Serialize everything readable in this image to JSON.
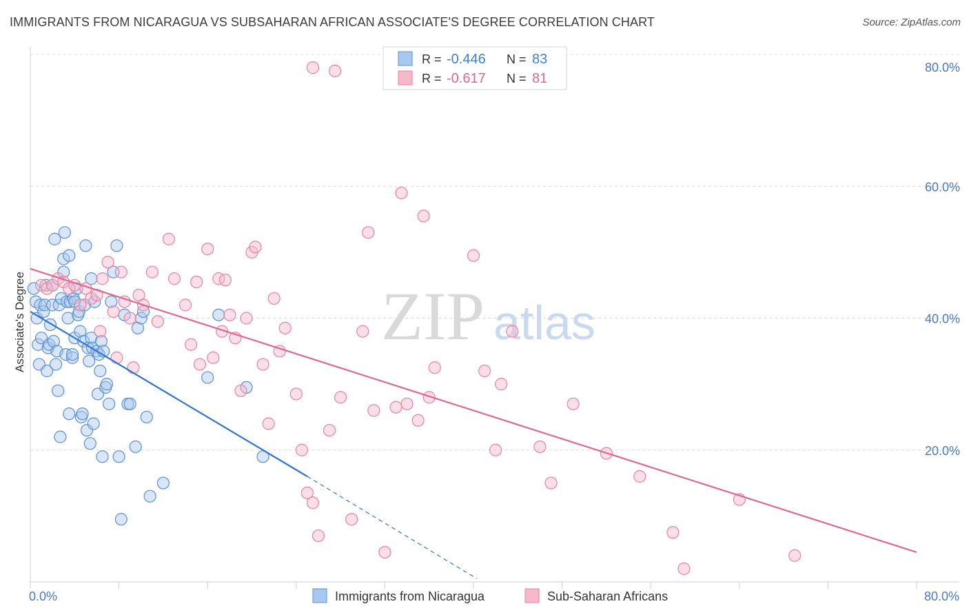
{
  "title": "IMMIGRANTS FROM NICARAGUA VS SUBSAHARAN AFRICAN ASSOCIATE'S DEGREE CORRELATION CHART",
  "source": "Source: ZipAtlas.com",
  "watermark": {
    "zip": "ZIP",
    "atlas": "atlas"
  },
  "chart_data": {
    "type": "scatter",
    "ylabel": "Associate's Degree",
    "xlim": [
      0,
      80
    ],
    "ylim": [
      0,
      80
    ],
    "x_tick_labels": [
      {
        "value": 0,
        "label": "0.0%"
      },
      {
        "value": 80,
        "label": "80.0%"
      }
    ],
    "y_tick_labels": [
      {
        "value": 20,
        "label": "20.0%"
      },
      {
        "value": 40,
        "label": "40.0%"
      },
      {
        "value": 60,
        "label": "60.0%"
      },
      {
        "value": 80,
        "label": "80.0%"
      }
    ],
    "grid": true,
    "legend_top": {
      "placement": "top-center",
      "rows": [
        {
          "r_label": "R = ",
          "r_value": "-0.446",
          "n_label": "N = ",
          "n_value": "83",
          "color": "#a9c8ee"
        },
        {
          "r_label": "R = ",
          "r_value": " -0.617",
          "n_label": "N = ",
          "n_value": " 81",
          "color": "#f6b8cb"
        }
      ]
    },
    "legend_bottom": {
      "placement": "bottom-center",
      "entries": [
        {
          "label": "Immigrants from Nicaragua",
          "color": "#a9c8ee"
        },
        {
          "label": "Sub-Saharan Africans",
          "color": "#f6b8cb"
        }
      ]
    },
    "series": [
      {
        "name": "Immigrants from Nicaragua",
        "fill": "#a9c8ee",
        "stroke": "#5b8fd6",
        "trend": {
          "color": "#2f74d0",
          "x_start": 0,
          "y_start": 41.0,
          "x_end": 25,
          "y_end": 16.0,
          "dash_x_end": 40.3,
          "dash_y_end": 0.5
        },
        "points": [
          [
            0.3,
            44.5
          ],
          [
            0.5,
            42.5
          ],
          [
            0.6,
            40.0
          ],
          [
            0.7,
            36.0
          ],
          [
            0.8,
            33.0
          ],
          [
            0.9,
            42.0
          ],
          [
            1.0,
            37.0
          ],
          [
            1.2,
            41.0
          ],
          [
            1.3,
            42.0
          ],
          [
            1.4,
            45.0
          ],
          [
            1.5,
            32.0
          ],
          [
            1.6,
            35.5
          ],
          [
            1.7,
            36.0
          ],
          [
            1.8,
            39.0
          ],
          [
            2.0,
            45.0
          ],
          [
            2.0,
            42.0
          ],
          [
            2.1,
            36.5
          ],
          [
            2.2,
            52.0
          ],
          [
            2.3,
            33.0
          ],
          [
            2.4,
            35.0
          ],
          [
            2.5,
            29.0
          ],
          [
            2.6,
            42.0
          ],
          [
            2.7,
            22.0
          ],
          [
            2.8,
            43.0
          ],
          [
            3.0,
            49.0
          ],
          [
            3.0,
            47.0
          ],
          [
            3.1,
            53.0
          ],
          [
            3.2,
            34.5
          ],
          [
            3.3,
            42.5
          ],
          [
            3.4,
            40.0
          ],
          [
            3.5,
            25.5
          ],
          [
            3.5,
            49.5
          ],
          [
            3.6,
            42.5
          ],
          [
            3.8,
            34.0
          ],
          [
            3.8,
            34.5
          ],
          [
            3.9,
            43.0
          ],
          [
            4.0,
            37.0
          ],
          [
            4.0,
            42.5
          ],
          [
            4.2,
            44.5
          ],
          [
            4.3,
            40.5
          ],
          [
            4.4,
            41.0
          ],
          [
            4.5,
            38.0
          ],
          [
            4.6,
            25.0
          ],
          [
            4.7,
            25.5
          ],
          [
            4.8,
            36.5
          ],
          [
            4.9,
            42.0
          ],
          [
            5.0,
            51.0
          ],
          [
            5.1,
            23.0
          ],
          [
            5.2,
            35.5
          ],
          [
            5.3,
            33.5
          ],
          [
            5.4,
            21.0
          ],
          [
            5.5,
            46.0
          ],
          [
            5.5,
            37.0
          ],
          [
            5.6,
            35.5
          ],
          [
            5.7,
            24.0
          ],
          [
            5.8,
            42.5
          ],
          [
            6.0,
            35.0
          ],
          [
            6.1,
            28.5
          ],
          [
            6.2,
            34.5
          ],
          [
            6.3,
            32.0
          ],
          [
            6.4,
            36.5
          ],
          [
            6.5,
            19.0
          ],
          [
            6.6,
            35.0
          ],
          [
            6.8,
            29.5
          ],
          [
            6.9,
            30.0
          ],
          [
            7.1,
            27.0
          ],
          [
            7.3,
            42.5
          ],
          [
            7.5,
            47.0
          ],
          [
            7.8,
            51.0
          ],
          [
            8.0,
            19.0
          ],
          [
            8.2,
            9.5
          ],
          [
            8.5,
            40.5
          ],
          [
            8.8,
            27.0
          ],
          [
            9.0,
            27.0
          ],
          [
            9.5,
            20.5
          ],
          [
            9.7,
            38.5
          ],
          [
            10.0,
            40.0
          ],
          [
            10.2,
            41.0
          ],
          [
            10.5,
            25.0
          ],
          [
            10.8,
            13.0
          ],
          [
            12.0,
            15.0
          ],
          [
            16.0,
            31.0
          ],
          [
            17.0,
            40.5
          ],
          [
            19.5,
            29.5
          ],
          [
            21.0,
            19.0
          ]
        ]
      },
      {
        "name": "Sub-Saharan Africans",
        "fill": "#f6b8cb",
        "stroke": "#e8829f",
        "trend": {
          "color": "#e0678f",
          "x_start": 0,
          "y_start": 47.5,
          "x_end": 80,
          "y_end": 4.5
        },
        "points": [
          [
            1.0,
            45.0
          ],
          [
            1.5,
            44.5
          ],
          [
            2.0,
            45.0
          ],
          [
            2.5,
            46.0
          ],
          [
            3.0,
            45.5
          ],
          [
            3.5,
            44.5
          ],
          [
            4.0,
            45.0
          ],
          [
            4.5,
            42.0
          ],
          [
            5.0,
            44.5
          ],
          [
            5.5,
            43.0
          ],
          [
            6.0,
            43.5
          ],
          [
            6.3,
            38.0
          ],
          [
            6.5,
            46.0
          ],
          [
            7.0,
            48.5
          ],
          [
            7.5,
            41.0
          ],
          [
            7.8,
            34.0
          ],
          [
            8.2,
            47.0
          ],
          [
            8.5,
            42.5
          ],
          [
            9.0,
            40.0
          ],
          [
            9.3,
            32.5
          ],
          [
            9.8,
            43.5
          ],
          [
            10.2,
            42.0
          ],
          [
            11.0,
            47.0
          ],
          [
            11.5,
            39.5
          ],
          [
            12.5,
            52.0
          ],
          [
            13.0,
            46.0
          ],
          [
            14.0,
            42.0
          ],
          [
            14.5,
            36.0
          ],
          [
            15.0,
            45.5
          ],
          [
            15.3,
            33.0
          ],
          [
            16.0,
            50.5
          ],
          [
            16.5,
            34.0
          ],
          [
            17.0,
            46.0
          ],
          [
            17.3,
            38.0
          ],
          [
            17.6,
            45.8
          ],
          [
            18.0,
            40.5
          ],
          [
            18.5,
            37.0
          ],
          [
            19.0,
            29.0
          ],
          [
            19.5,
            40.0
          ],
          [
            20.0,
            50.0
          ],
          [
            20.3,
            50.8
          ],
          [
            21.0,
            33.0
          ],
          [
            21.5,
            24.0
          ],
          [
            22.0,
            43.0
          ],
          [
            22.5,
            35.0
          ],
          [
            23.0,
            38.5
          ],
          [
            24.0,
            28.5
          ],
          [
            24.5,
            20.0
          ],
          [
            25.0,
            13.5
          ],
          [
            25.5,
            12.0
          ],
          [
            26.0,
            7.0
          ],
          [
            27.0,
            23.0
          ],
          [
            28.0,
            28.0
          ],
          [
            29.0,
            9.5
          ],
          [
            30.0,
            38.0
          ],
          [
            30.5,
            53.0
          ],
          [
            31.0,
            26.0
          ],
          [
            32.0,
            4.5
          ],
          [
            33.0,
            26.5
          ],
          [
            33.5,
            59.0
          ],
          [
            34.0,
            27.0
          ],
          [
            35.0,
            24.5
          ],
          [
            35.5,
            55.5
          ],
          [
            36.0,
            28.0
          ],
          [
            36.5,
            32.5
          ],
          [
            40.0,
            49.5
          ],
          [
            41.0,
            32.0
          ],
          [
            42.0,
            20.0
          ],
          [
            42.5,
            30.0
          ],
          [
            43.5,
            38.0
          ],
          [
            46.0,
            20.5
          ],
          [
            47.0,
            15.0
          ],
          [
            49.0,
            27.0
          ],
          [
            52.0,
            19.5
          ],
          [
            55.0,
            16.0
          ],
          [
            58.0,
            7.5
          ],
          [
            59.0,
            2.0
          ],
          [
            64.0,
            12.5
          ],
          [
            69.0,
            4.0
          ],
          [
            25.5,
            78.0
          ],
          [
            27.5,
            77.5
          ]
        ]
      }
    ]
  }
}
